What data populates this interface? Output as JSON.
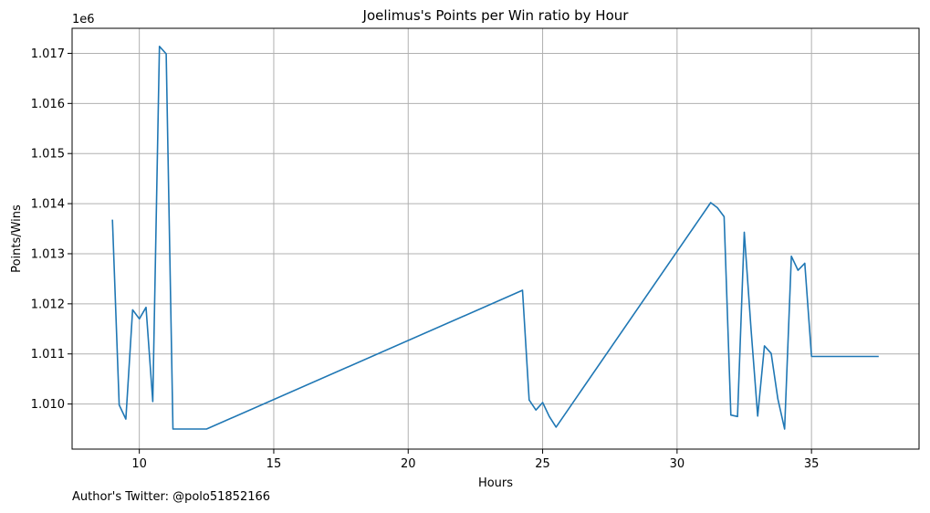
{
  "chart_data": {
    "type": "line",
    "title": "Joelimus's Points per Win ratio by Hour",
    "xlabel": "Hours",
    "ylabel": "Points/Wins",
    "y_offset_label": "1e6",
    "xlim": [
      7.5,
      39.0
    ],
    "ylim": [
      1009.1,
      1017.5
    ],
    "x_ticks": [
      10,
      15,
      20,
      25,
      30,
      35
    ],
    "x_tick_labels": [
      "10",
      "15",
      "20",
      "25",
      "30",
      "35"
    ],
    "y_ticks": [
      1010,
      1011,
      1012,
      1013,
      1014,
      1015,
      1016,
      1017
    ],
    "y_tick_labels": [
      "1.010",
      "1.011",
      "1.012",
      "1.013",
      "1.014",
      "1.015",
      "1.016",
      "1.017"
    ],
    "grid": true,
    "color": "#1f77b4",
    "series": [
      {
        "x": [
          9.0,
          9.25,
          9.5,
          9.75,
          10.0,
          10.25,
          10.5,
          10.75,
          11.0,
          11.25,
          12.5,
          24.25,
          24.5,
          24.75,
          25.0,
          25.25,
          25.5,
          31.25,
          31.5,
          31.75,
          32.0,
          32.25,
          32.5,
          32.75,
          33.0,
          33.25,
          33.5,
          33.75,
          34.0,
          34.25,
          34.5,
          34.75,
          35.0,
          37.5
        ],
        "y": [
          1013.68,
          1009.98,
          1009.7,
          1011.88,
          1011.7,
          1011.93,
          1010.05,
          1017.14,
          1016.99,
          1009.5,
          1009.5,
          1012.27,
          1010.08,
          1009.88,
          1010.03,
          1009.75,
          1009.54,
          1014.02,
          1013.92,
          1013.74,
          1009.78,
          1009.75,
          1013.43,
          1011.5,
          1009.76,
          1011.16,
          1011.01,
          1010.1,
          1009.5,
          1012.95,
          1012.67,
          1012.81,
          1010.95,
          1010.95
        ]
      }
    ]
  },
  "footer": {
    "author_note": "Author's Twitter: @polo51852166"
  }
}
